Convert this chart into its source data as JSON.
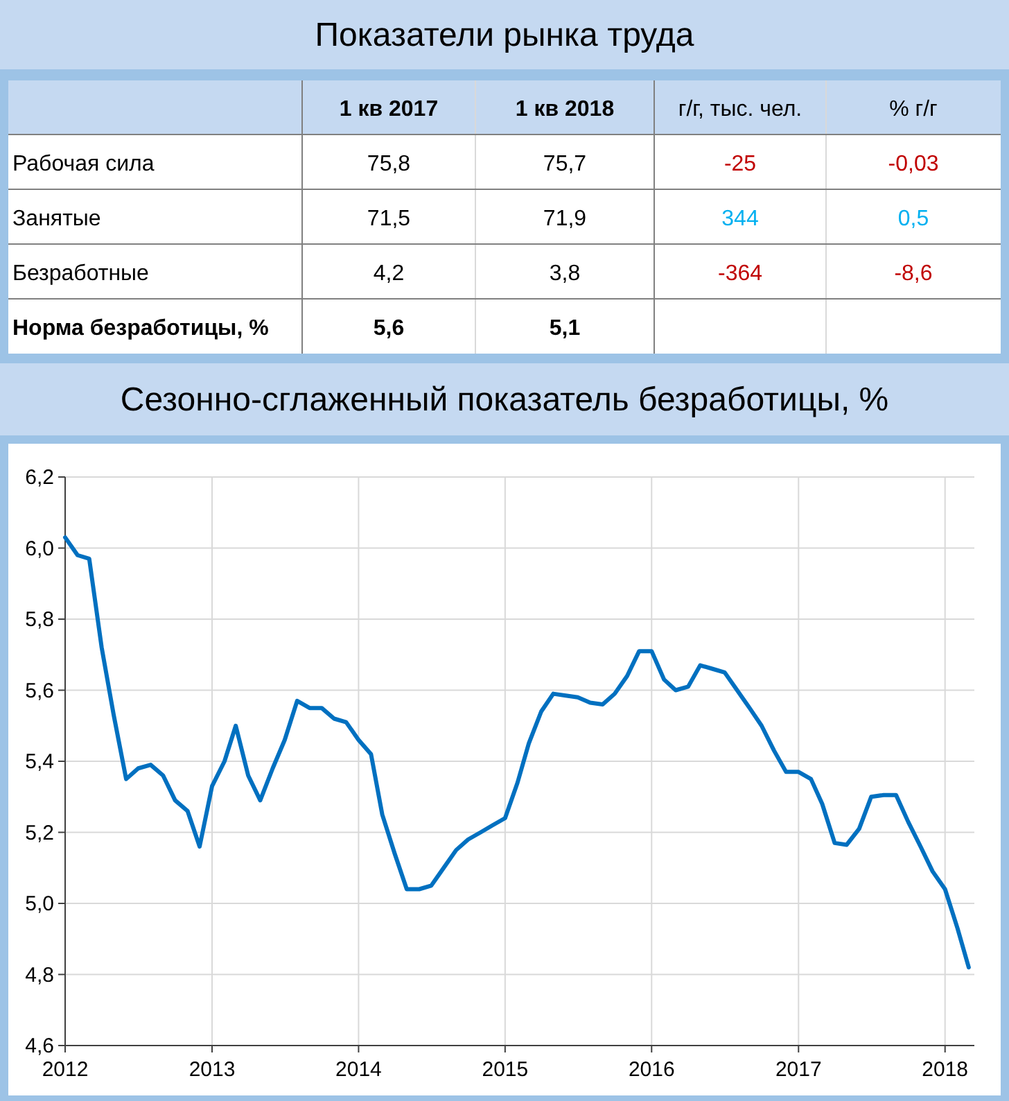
{
  "chart_data": [
    {
      "type": "other",
      "title": "Показатели рынка труда",
      "categories": [
        null,
        "1 кв 2017",
        "1 кв 2018",
        "г/г, тыс. чел.",
        "% г/г"
      ],
      "y_categories": [
        "Рабочая сила",
        "Занятые",
        "Безработные",
        "Норма безработицы, %"
      ],
      "cell_labels": [
        [
          "75,8",
          "75,7",
          "-25",
          "-0,03"
        ],
        [
          "71,5",
          "71,9",
          "344",
          "0,5"
        ],
        [
          "4,2",
          "3,8",
          "-364",
          "-8,6"
        ],
        [
          "5,6",
          "5,1",
          null,
          null
        ]
      ],
      "colors": [
        [
          "#000000",
          "#000000",
          "#c00000",
          "#c00000"
        ],
        [
          "#000000",
          "#000000",
          "#00b0f0",
          "#00b0f0"
        ],
        [
          "#000000",
          "#000000",
          "#c00000",
          "#c00000"
        ],
        [
          "#000000",
          "#000000",
          null,
          null
        ]
      ]
    },
    {
      "type": "line",
      "title": "Сезонно-сглаженный показатель безработицы, %",
      "grid": true,
      "line_style": "solid",
      "marker": "none",
      "x": [
        "2012-01",
        "2012-02",
        "2012-03",
        "2012-04",
        "2012-05",
        "2012-06",
        "2012-07",
        "2012-08",
        "2012-09",
        "2012-10",
        "2012-11",
        "2012-12",
        "2013-01",
        "2013-02",
        "2013-03",
        "2013-04",
        "2013-05",
        "2013-06",
        "2013-07",
        "2013-08",
        "2013-09",
        "2013-10",
        "2013-11",
        "2013-12",
        "2014-01",
        "2014-02",
        "2014-03",
        "2014-04",
        "2014-05",
        "2014-06",
        "2014-07",
        "2014-08",
        "2014-09",
        "2014-10",
        "2014-11",
        "2014-12",
        "2015-01",
        "2015-02",
        "2015-03",
        "2015-04",
        "2015-05",
        "2015-06",
        "2015-07",
        "2015-08",
        "2015-09",
        "2015-10",
        "2015-11",
        "2015-12",
        "2016-01",
        "2016-02",
        "2016-03",
        "2016-04",
        "2016-05",
        "2016-06",
        "2016-07",
        "2016-08",
        "2016-09",
        "2016-10",
        "2016-11",
        "2016-12",
        "2017-01",
        "2017-02",
        "2017-03",
        "2017-04",
        "2017-05",
        "2017-06",
        "2017-07",
        "2017-08",
        "2017-09",
        "2017-10",
        "2017-11",
        "2017-12",
        "2018-01",
        "2018-02",
        "2018-03"
      ],
      "series": [
        {
          "color": "#0070c0",
          "values": [
            6.03,
            5.98,
            5.97,
            5.72,
            5.53,
            5.35,
            5.38,
            5.39,
            5.36,
            5.29,
            5.26,
            5.16,
            5.33,
            5.4,
            5.5,
            5.36,
            5.29,
            5.38,
            5.46,
            5.57,
            5.55,
            5.55,
            5.52,
            5.51,
            5.46,
            5.42,
            5.25,
            5.14,
            5.04,
            5.04,
            5.05,
            5.1,
            5.15,
            5.18,
            5.2,
            5.22,
            5.24,
            5.34,
            5.45,
            5.54,
            5.59,
            5.585,
            5.58,
            5.565,
            5.56,
            5.59,
            5.64,
            5.71,
            5.71,
            5.63,
            5.6,
            5.61,
            5.67,
            5.66,
            5.65,
            5.6,
            5.55,
            5.5,
            5.43,
            5.37,
            5.37,
            5.35,
            5.28,
            5.17,
            5.165,
            5.21,
            5.3,
            5.305,
            5.305,
            5.23,
            5.16,
            5.09,
            5.04,
            4.93,
            4.82
          ]
        }
      ],
      "xlim": [
        "2012-01",
        "2018-03-15"
      ],
      "xticks": [
        "2012",
        "2013",
        "2014",
        "2015",
        "2016",
        "2017",
        "2018"
      ],
      "ylim": [
        4.6,
        6.2
      ],
      "yticks": [
        {
          "value": 4.6,
          "label": "4,6"
        },
        {
          "value": 4.8,
          "label": "4,8"
        },
        {
          "value": 5.0,
          "label": "5,0"
        },
        {
          "value": 5.2,
          "label": "5,2"
        },
        {
          "value": 5.4,
          "label": "5,4"
        },
        {
          "value": 5.6,
          "label": "5,6"
        },
        {
          "value": 5.8,
          "label": "5,8"
        },
        {
          "value": 6.0,
          "label": "6,0"
        },
        {
          "value": 6.2,
          "label": "6,2"
        }
      ]
    }
  ]
}
